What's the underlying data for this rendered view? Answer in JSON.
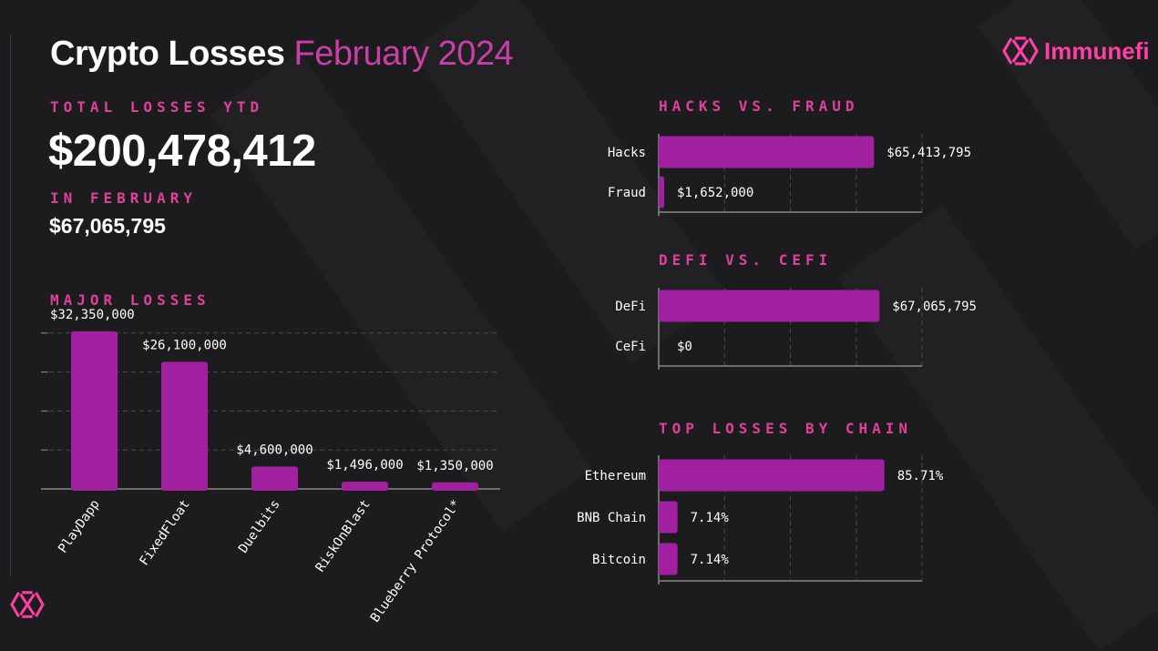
{
  "header": {
    "title": "Crypto Losses",
    "title_accent": "February 2024",
    "brand": "Immunefi"
  },
  "summary": {
    "ytd_label": "TOTAL LOSSES YTD",
    "ytd_value": "$200,478,412",
    "month_label": "IN FEBRUARY",
    "month_value": "$67,065,795"
  },
  "colors": {
    "bar": "#a020a0",
    "accent": "#e0409a",
    "background": "#1c1c1e"
  },
  "chart_data": [
    {
      "type": "bar",
      "title": "MAJOR LOSSES",
      "categories": [
        "PlayDapp",
        "FixedFloat",
        "Duelbits",
        "RiskOnBlast",
        "Blueberry Protocol*"
      ],
      "values": [
        32350000,
        26100000,
        4600000,
        1496000,
        1350000
      ],
      "value_labels": [
        "$32,350,000",
        "$26,100,000",
        "$4,600,000",
        "$1,496,000",
        "$1,350,000"
      ],
      "ylim": [
        0,
        40000000
      ],
      "grid": true
    },
    {
      "type": "bar",
      "orientation": "horizontal",
      "title": "HACKS VS. FRAUD",
      "categories": [
        "Hacks",
        "Fraud"
      ],
      "values": [
        65413795,
        1652000
      ],
      "value_labels": [
        "$65,413,795",
        "$1,652,000"
      ],
      "xlim": [
        0,
        80000000
      ],
      "grid": true
    },
    {
      "type": "bar",
      "orientation": "horizontal",
      "title": "DEFI VS. CEFI",
      "categories": [
        "DeFi",
        "CeFi"
      ],
      "values": [
        67065795,
        0
      ],
      "value_labels": [
        "$67,065,795",
        "$0"
      ],
      "xlim": [
        0,
        80000000
      ],
      "grid": true
    },
    {
      "type": "bar",
      "orientation": "horizontal",
      "title": "TOP LOSSES BY CHAIN",
      "categories": [
        "Ethereum",
        "BNB Chain",
        "Bitcoin"
      ],
      "values": [
        85.71,
        7.14,
        7.14
      ],
      "value_labels": [
        "85.71%",
        "7.14%",
        "7.14%"
      ],
      "xlim": [
        0,
        100
      ],
      "grid": true
    }
  ]
}
